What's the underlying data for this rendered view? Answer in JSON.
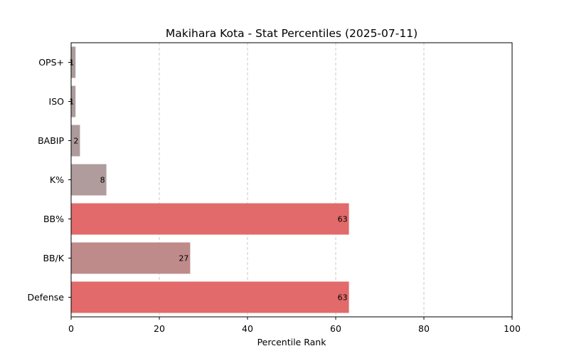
{
  "chart_data": {
    "type": "bar",
    "orientation": "horizontal",
    "title": "Makihara Kota - Stat Percentiles (2025-07-11)",
    "xlabel": "Percentile Rank",
    "ylabel": "",
    "xlim": [
      0,
      100
    ],
    "xticks": [
      0,
      20,
      40,
      60,
      80,
      100
    ],
    "grid": "x-dashed",
    "categories": [
      "OPS+",
      "ISO",
      "BABIP",
      "K%",
      "BB%",
      "BB/K",
      "Defense"
    ],
    "values": [
      1,
      1,
      2,
      8,
      63,
      27,
      63
    ],
    "data_labels": [
      "1",
      "1",
      "2",
      "8",
      "63",
      "27",
      "63"
    ],
    "colors": [
      "#ab9c9c",
      "#ab9c9c",
      "#ad9a9a",
      "#b09c9c",
      "#e26a6a",
      "#bf8a8a",
      "#e26a6a"
    ]
  }
}
